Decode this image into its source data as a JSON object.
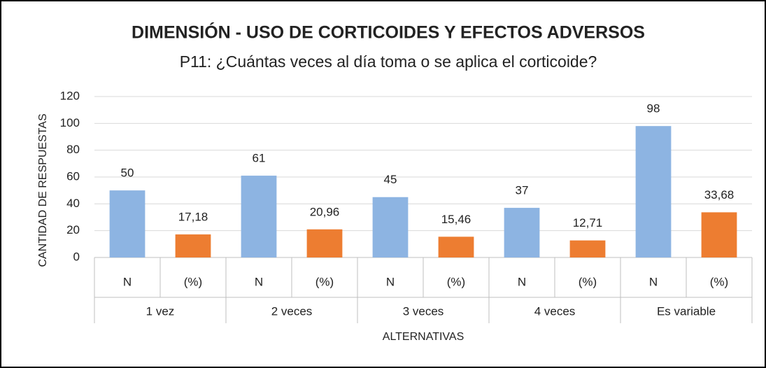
{
  "chart_data": {
    "type": "bar",
    "title": "DIMENSIÓN - USO DE CORTICOIDES Y EFECTOS ADVERSOS",
    "subtitle": "P11: ¿Cuántas veces al día toma o se aplica el corticoide?",
    "xlabel": "ALTERNATIVAS",
    "ylabel": "CANTIDAD DE RESPUESTAS",
    "groups": [
      "1 vez",
      "2 veces",
      "3 veces",
      "4 veces",
      "Es variable"
    ],
    "categories": [
      "N",
      "(%)",
      "N",
      "(%)",
      "N",
      "(%)",
      "N",
      "(%)",
      "N",
      "(%)"
    ],
    "values": [
      50,
      17.18,
      61,
      20.96,
      45,
      15.46,
      37,
      12.71,
      98,
      33.68
    ],
    "value_labels": [
      "50",
      "17,18",
      "61",
      "20,96",
      "45",
      "15,46",
      "37",
      "12,71",
      "98",
      "33,68"
    ],
    "colors": [
      "#8db4e2",
      "#ed7d31",
      "#8db4e2",
      "#ed7d31",
      "#8db4e2",
      "#ed7d31",
      "#8db4e2",
      "#ed7d31",
      "#8db4e2",
      "#ed7d31"
    ],
    "ylim": [
      0,
      120
    ],
    "yticks": [
      0,
      20,
      40,
      60,
      80,
      100,
      120
    ],
    "grid": true
  }
}
